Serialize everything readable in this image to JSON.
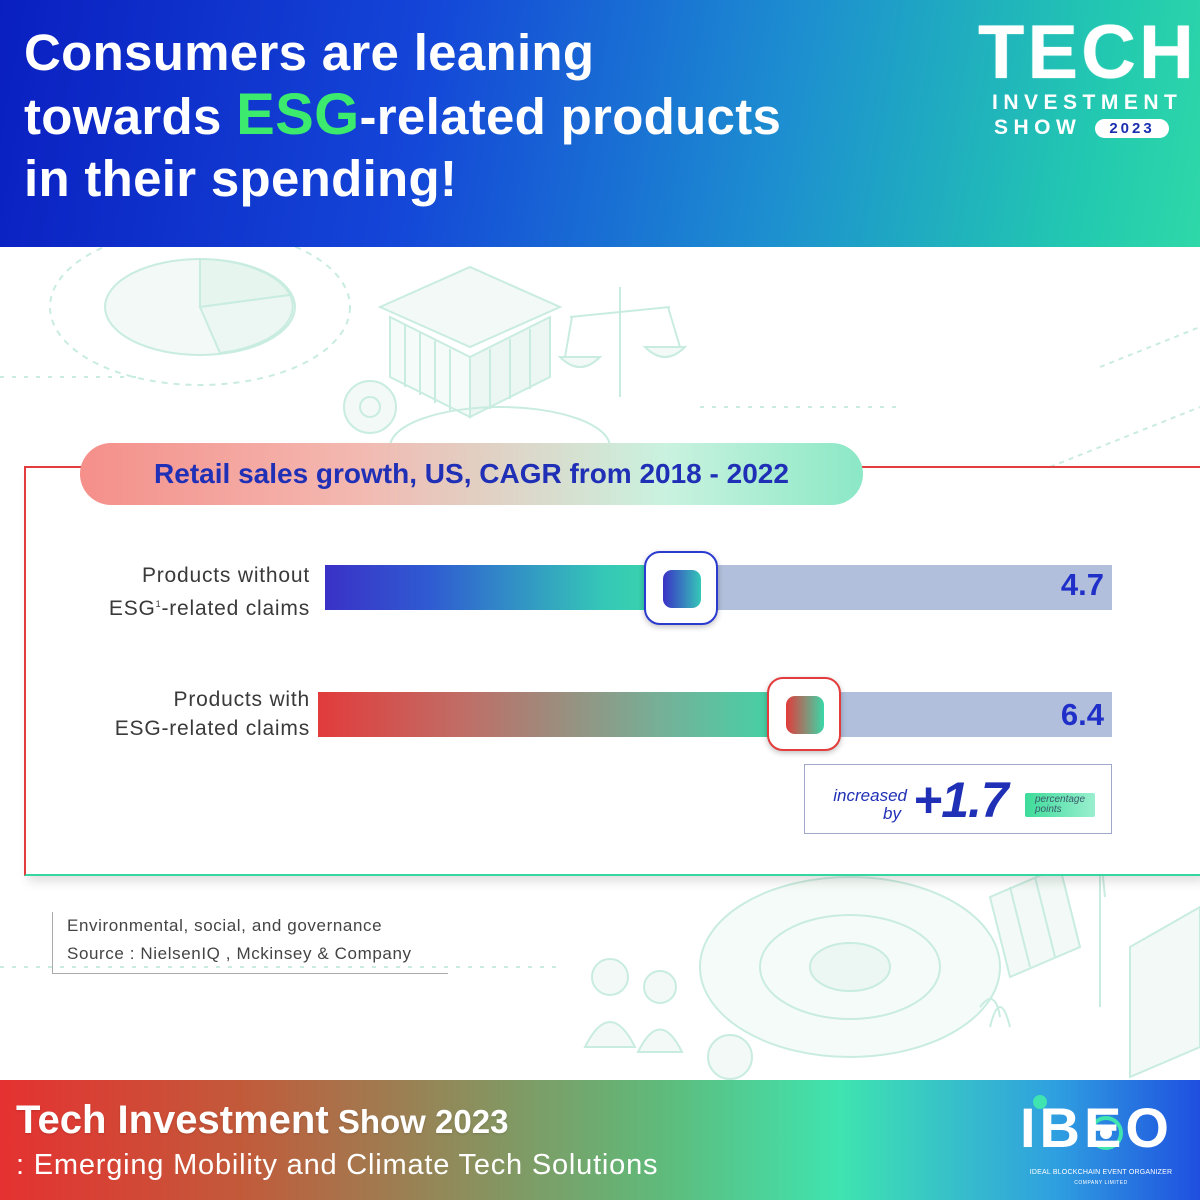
{
  "header": {
    "headline_line1": "Consumers are leaning",
    "headline_line2_pre": "towards ",
    "headline_highlight": "ESG",
    "headline_line2_post": "-related products",
    "headline_line3": "in their spending!"
  },
  "logo": {
    "big": "TECH",
    "mid": "INVESTMENT",
    "show": "SHOW",
    "year": "2023"
  },
  "chart_data": {
    "type": "bar",
    "orientation": "horizontal",
    "title": "Retail sales growth, US, CAGR from 2018 - 2022",
    "categories": [
      "Products without ESG¹-related claims",
      "Products with ESG-related claims"
    ],
    "values": [
      4.7,
      6.4
    ],
    "labels": [
      {
        "line1": "Products without",
        "line2_pre": "ESG",
        "sup": "1",
        "line2_post": "-related claims"
      },
      {
        "line1": "Products with",
        "line2_pre": "ESG",
        "sup": "",
        "line2_post": "-related claims"
      }
    ],
    "value_labels": [
      "4.7",
      "6.4"
    ],
    "annotation": {
      "text_line1": "increased",
      "text_line2": "by",
      "value": "+1.7",
      "unit_line1": "percentage",
      "unit_line2": "points"
    },
    "colors": {
      "without": [
        "#3a31c6",
        "#3ad8a8"
      ],
      "with": [
        "#e23b3b",
        "#3ad8a8"
      ],
      "track": "#b1bfdc"
    }
  },
  "footnote": {
    "line1": "Environmental, social, and governance",
    "line2": "Source : NielsenIQ , Mckinsey & Company"
  },
  "footer": {
    "title_bold": "Tech Investment",
    "title_small": " Show 2023",
    "subtitle": ": Emerging Mobility and Climate Tech Solutions"
  },
  "ibeo": {
    "letters": "IBEO",
    "name": "IDEAL BLOCKCHAIN EVENT ORGANIZER",
    "sub": "COMPANY LIMITED"
  }
}
